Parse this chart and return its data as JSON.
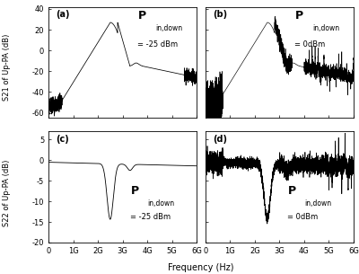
{
  "title": "",
  "panels": [
    "a",
    "b",
    "c",
    "d"
  ],
  "xlabel": "Frequency (Hz)",
  "ylabel_top": "S21 of Up-PA (dB)",
  "ylabel_bottom": "S22 of Up-PA (dB)",
  "xlim": [
    0,
    6000000000.0
  ],
  "xticks": [
    0,
    1000000000.0,
    2000000000.0,
    3000000000.0,
    4000000000.0,
    5000000000.0,
    6000000000.0
  ],
  "xticklabels": [
    "0",
    "1G",
    "2G",
    "3G",
    "4G",
    "5G",
    "6G"
  ],
  "s21_ylim": [
    -65,
    42
  ],
  "s21_yticks": [
    -60,
    -40,
    -20,
    0,
    20,
    40
  ],
  "s22_ylim": [
    -20,
    7
  ],
  "s22_yticks": [
    -20,
    -15,
    -10,
    -5,
    0,
    5
  ]
}
